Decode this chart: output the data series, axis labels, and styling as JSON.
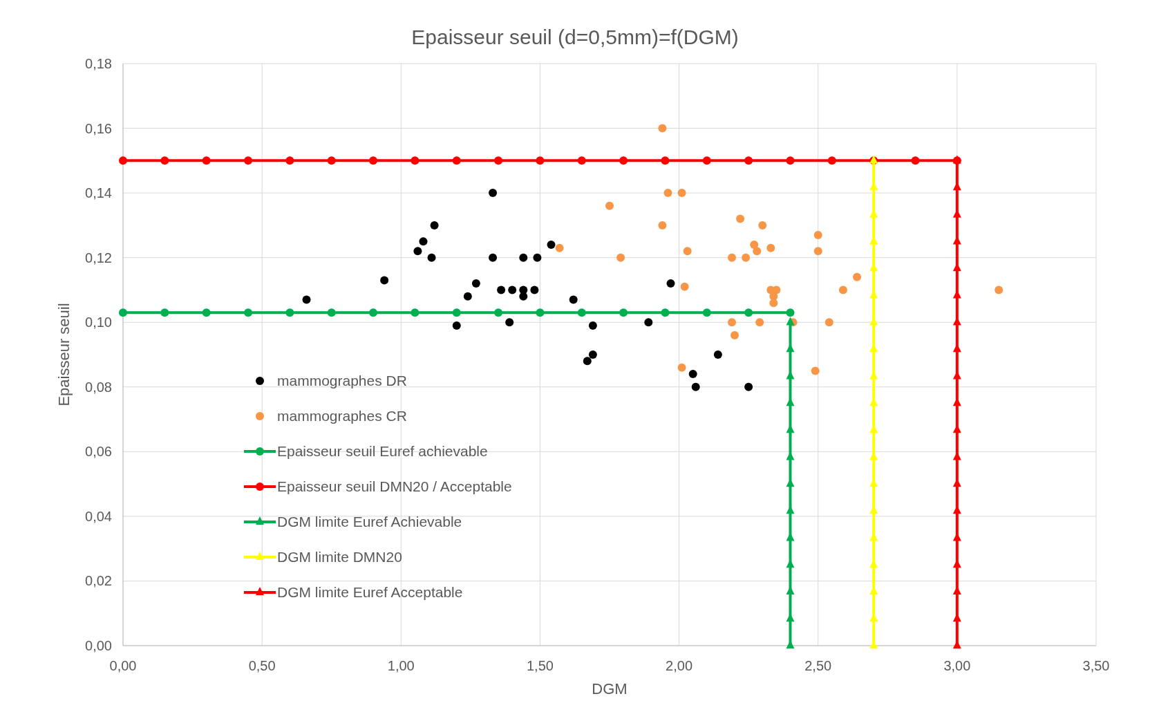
{
  "chart_data": {
    "type": "scatter",
    "title": "Epaisseur seuil (d=0,5mm)=f(DGM)",
    "xlabel": "DGM",
    "ylabel": "Epaisseur seuil",
    "xlim": [
      0,
      3.5
    ],
    "ylim": [
      0,
      0.18
    ],
    "xticks": [
      {
        "value": 0,
        "label": "0,00"
      },
      {
        "value": 0.5,
        "label": "0,50"
      },
      {
        "value": 1,
        "label": "1,00"
      },
      {
        "value": 1.5,
        "label": "1,50"
      },
      {
        "value": 2,
        "label": "2,00"
      },
      {
        "value": 2.5,
        "label": "2,50"
      },
      {
        "value": 3,
        "label": "3,00"
      },
      {
        "value": 3.5,
        "label": "3,50"
      }
    ],
    "yticks": [
      {
        "value": 0,
        "label": "0,00"
      },
      {
        "value": 0.02,
        "label": "0,02"
      },
      {
        "value": 0.04,
        "label": "0,04"
      },
      {
        "value": 0.06,
        "label": "0,06"
      },
      {
        "value": 0.08,
        "label": "0,08"
      },
      {
        "value": 0.1,
        "label": "0,10"
      },
      {
        "value": 0.12,
        "label": "0,12"
      },
      {
        "value": 0.14,
        "label": "0,14"
      },
      {
        "value": 0.16,
        "label": "0,16"
      },
      {
        "value": 0.18,
        "label": "0,18"
      }
    ],
    "grid": true,
    "legend": "bottom left",
    "series": [
      {
        "name": "mammographes DR",
        "marker": "circle",
        "color": "#000000",
        "x": [
          0.66,
          0.94,
          1.06,
          1.08,
          1.11,
          1.12,
          1.2,
          1.24,
          1.27,
          1.33,
          1.33,
          1.36,
          1.39,
          1.4,
          1.44,
          1.44,
          1.44,
          1.48,
          1.49,
          1.54,
          1.62,
          1.67,
          1.69,
          1.69,
          1.89,
          1.97,
          2.05,
          2.06,
          2.14,
          2.25
        ],
        "values": [
          0.107,
          0.113,
          0.122,
          0.125,
          0.12,
          0.13,
          0.099,
          0.108,
          0.112,
          0.14,
          0.12,
          0.11,
          0.1,
          0.11,
          0.12,
          0.11,
          0.108,
          0.11,
          0.12,
          0.124,
          0.107,
          0.088,
          0.099,
          0.09,
          0.1,
          0.112,
          0.084,
          0.08,
          0.09,
          0.08
        ]
      },
      {
        "name": "mammographes CR",
        "marker": "circle",
        "color": "#f79646",
        "x": [
          1.57,
          1.75,
          1.79,
          1.94,
          1.94,
          1.96,
          2.01,
          2.01,
          2.02,
          2.03,
          2.19,
          2.19,
          2.2,
          2.22,
          2.24,
          2.27,
          2.28,
          2.29,
          2.3,
          2.33,
          2.33,
          2.35,
          2.34,
          2.34,
          2.41,
          2.49,
          2.5,
          2.5,
          2.54,
          2.59,
          2.64,
          3.15
        ],
        "values": [
          0.123,
          0.136,
          0.12,
          0.16,
          0.13,
          0.14,
          0.14,
          0.086,
          0.111,
          0.122,
          0.1,
          0.12,
          0.096,
          0.132,
          0.12,
          0.124,
          0.122,
          0.1,
          0.13,
          0.123,
          0.11,
          0.11,
          0.108,
          0.106,
          0.1,
          0.085,
          0.127,
          0.122,
          0.1,
          0.11,
          0.114,
          0.11
        ]
      },
      {
        "name": "Epaisseur seuil Euref achievable",
        "type": "line",
        "marker": "circle",
        "color": "#00b050",
        "x": [
          0,
          0.15,
          0.3,
          0.45,
          0.6,
          0.75,
          0.9,
          1.05,
          1.2,
          1.35,
          1.5,
          1.65,
          1.8,
          1.95,
          2.1,
          2.25,
          2.4
        ],
        "values": [
          0.103,
          0.103,
          0.103,
          0.103,
          0.103,
          0.103,
          0.103,
          0.103,
          0.103,
          0.103,
          0.103,
          0.103,
          0.103,
          0.103,
          0.103,
          0.103,
          0.103
        ]
      },
      {
        "name": "Epaisseur seuil DMN20 / Acceptable",
        "type": "line",
        "marker": "circle",
        "color": "#ff0000",
        "x": [
          0,
          0.15,
          0.3,
          0.45,
          0.6,
          0.75,
          0.9,
          1.05,
          1.2,
          1.35,
          1.5,
          1.65,
          1.8,
          1.95,
          2.1,
          2.25,
          2.4,
          2.55,
          2.7,
          2.85,
          3.0
        ],
        "values": [
          0.15,
          0.15,
          0.15,
          0.15,
          0.15,
          0.15,
          0.15,
          0.15,
          0.15,
          0.15,
          0.15,
          0.15,
          0.15,
          0.15,
          0.15,
          0.15,
          0.15,
          0.15,
          0.15,
          0.15,
          0.15
        ]
      },
      {
        "name": "DGM limite Euref Achievable",
        "type": "line",
        "marker": "triangle",
        "color": "#00b050",
        "x": [
          2.4,
          2.4,
          2.4,
          2.4,
          2.4,
          2.4,
          2.4,
          2.4,
          2.4,
          2.4,
          2.4,
          2.4,
          2.4
        ],
        "values": [
          0,
          0.0083,
          0.0167,
          0.025,
          0.0333,
          0.0417,
          0.05,
          0.0583,
          0.0667,
          0.075,
          0.0833,
          0.0917,
          0.1
        ]
      },
      {
        "name": "DGM limite DMN20",
        "type": "line",
        "marker": "triangle",
        "color": "#ffff00",
        "x": [
          2.7,
          2.7,
          2.7,
          2.7,
          2.7,
          2.7,
          2.7,
          2.7,
          2.7,
          2.7,
          2.7,
          2.7,
          2.7,
          2.7,
          2.7,
          2.7,
          2.7,
          2.7,
          2.7
        ],
        "values": [
          0,
          0.0083,
          0.0167,
          0.025,
          0.0333,
          0.0417,
          0.05,
          0.0583,
          0.0667,
          0.075,
          0.0833,
          0.0917,
          0.1,
          0.1083,
          0.1167,
          0.125,
          0.1333,
          0.1417,
          0.15
        ]
      },
      {
        "name": "DGM limite Euref Acceptable",
        "type": "line",
        "marker": "triangle",
        "color": "#ff0000",
        "x": [
          3.0,
          3.0,
          3.0,
          3.0,
          3.0,
          3.0,
          3.0,
          3.0,
          3.0,
          3.0,
          3.0,
          3.0,
          3.0,
          3.0,
          3.0,
          3.0,
          3.0,
          3.0,
          3.0
        ],
        "values": [
          0,
          0.0083,
          0.0167,
          0.025,
          0.0333,
          0.0417,
          0.05,
          0.0583,
          0.0667,
          0.075,
          0.0833,
          0.0917,
          0.1,
          0.1083,
          0.1167,
          0.125,
          0.1333,
          0.1417,
          0.15
        ]
      }
    ]
  }
}
